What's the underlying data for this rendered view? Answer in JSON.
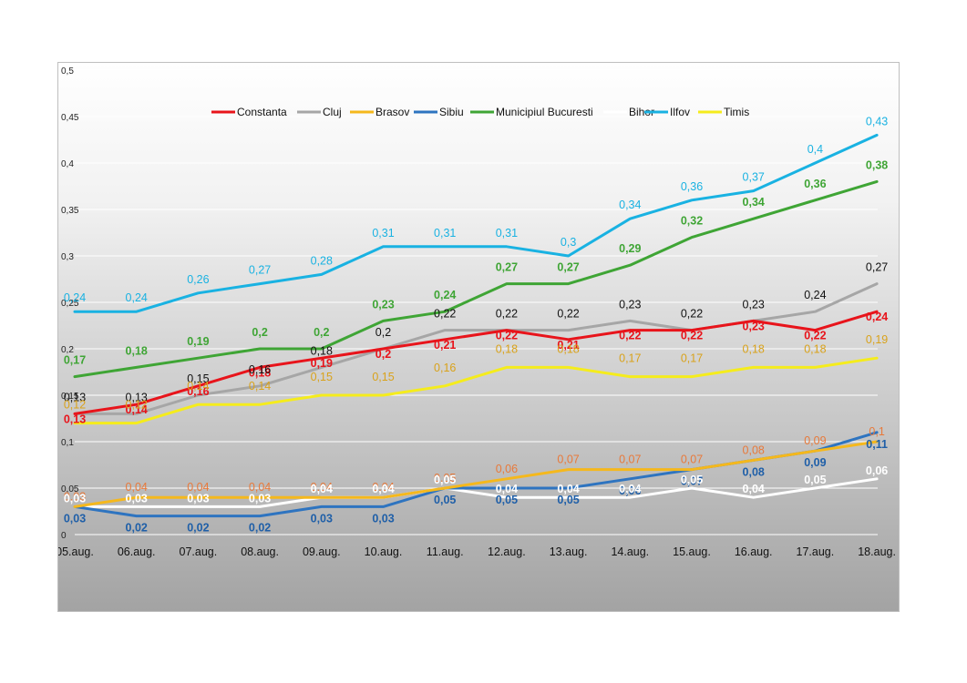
{
  "chart_data": {
    "type": "line",
    "categories": [
      "05.aug.",
      "06.aug.",
      "07.aug.",
      "08.aug.",
      "09.aug.",
      "10.aug.",
      "11.aug.",
      "12.aug.",
      "13.aug.",
      "14.aug.",
      "15.aug.",
      "16.aug.",
      "17.aug.",
      "18.aug."
    ],
    "ylim": [
      0,
      0.5
    ],
    "yticks": [
      "0",
      "0,05",
      "0,1",
      "0,15",
      "0,2",
      "0,25",
      "0,3",
      "0,35",
      "0,4",
      "0,45",
      "0,5"
    ],
    "grid": true,
    "legend_position": "top",
    "series": [
      {
        "name": "Constanta",
        "color": "#e8141b",
        "bold_labels": true,
        "values": [
          0.13,
          0.14,
          0.16,
          0.18,
          0.19,
          0.2,
          0.21,
          0.22,
          0.21,
          0.22,
          0.22,
          0.23,
          0.22,
          0.24
        ],
        "labels": [
          "0,13",
          "0,14",
          "0,16",
          "0,18",
          "0,19",
          "0,2",
          "0,21",
          "0,22",
          "0,21",
          "0,22",
          "0,22",
          "0,23",
          "0,22",
          "0,24"
        ]
      },
      {
        "name": "Cluj",
        "color": "#a6a6a6",
        "label_color": "#111111",
        "bold_labels": false,
        "values": [
          0.13,
          0.13,
          0.15,
          0.16,
          0.18,
          0.2,
          0.22,
          0.22,
          0.22,
          0.23,
          0.22,
          0.23,
          0.24,
          0.27
        ],
        "labels": [
          "0,13",
          "0,13",
          "0,15",
          "0,16",
          "0,18",
          "0,2",
          "0,22",
          "0,22",
          "0,22",
          "0,23",
          "0,22",
          "0,23",
          "0,24",
          "0,27"
        ]
      },
      {
        "name": "Brasov",
        "color": "#f5b81c",
        "label_color": "#e8793a",
        "bold_labels": false,
        "values": [
          0.03,
          0.04,
          0.04,
          0.04,
          0.04,
          0.04,
          0.05,
          0.06,
          0.07,
          0.07,
          0.07,
          0.08,
          0.09,
          0.1
        ],
        "labels": [
          "0,03",
          "0,04",
          "0,04",
          "0,04",
          "0,04",
          "0,04",
          "0,05",
          "0,06",
          "0,07",
          "0,07",
          "0,07",
          "0,08",
          "0,09",
          "0,1"
        ]
      },
      {
        "name": "Sibiu",
        "color": "#2e74c0",
        "label_color": "#1f5fa8",
        "bold_labels": true,
        "values": [
          0.03,
          0.02,
          0.02,
          0.02,
          0.03,
          0.03,
          0.05,
          0.05,
          0.05,
          0.06,
          0.07,
          0.08,
          0.09,
          0.11
        ],
        "labels": [
          "0,03",
          "0,02",
          "0,02",
          "0,02",
          "0,03",
          "0,03",
          "0,05",
          "0,05",
          "0,05",
          "0,06",
          "0,07",
          "0,08",
          "0,09",
          "0,11"
        ]
      },
      {
        "name": "Municipiul Bucuresti",
        "color": "#3fa535",
        "bold_labels": true,
        "values": [
          0.17,
          0.18,
          0.19,
          0.2,
          0.2,
          0.23,
          0.24,
          0.27,
          0.27,
          0.29,
          0.32,
          0.34,
          0.36,
          0.38
        ],
        "labels": [
          "0,17",
          "0,18",
          "0,19",
          "0,2",
          "0,2",
          "0,23",
          "0,24",
          "0,27",
          "0,27",
          "0,29",
          "0,32",
          "0,34",
          "0,36",
          "0,38"
        ]
      },
      {
        "name": "Bihor",
        "color": "#ffffff",
        "bold_labels": true,
        "values": [
          0.03,
          0.03,
          0.03,
          0.03,
          0.04,
          0.04,
          0.05,
          0.04,
          0.04,
          0.04,
          0.05,
          0.04,
          0.05,
          0.06
        ],
        "labels": [
          "0,03",
          "0,03",
          "0,03",
          "0,03",
          "0,04",
          "0,04",
          "0,05",
          "0,04",
          "0,04",
          "0,04",
          "0,05",
          "0,04",
          "0,05",
          "0,06"
        ]
      },
      {
        "name": "Ilfov",
        "color": "#19b2e2",
        "bold_labels": false,
        "values": [
          0.24,
          0.24,
          0.26,
          0.27,
          0.28,
          0.31,
          0.31,
          0.31,
          0.3,
          0.34,
          0.36,
          0.37,
          0.4,
          0.43
        ],
        "labels": [
          "0,24",
          "0,24",
          "0,26",
          "0,27",
          "0,28",
          "0,31",
          "0,31",
          "0,31",
          "0,3",
          "0,34",
          "0,36",
          "0,37",
          "0,4",
          "0,43"
        ]
      },
      {
        "name": "Timis",
        "color": "#f5ec1c",
        "label_color": "#d9a21a",
        "bold_labels": false,
        "values": [
          0.12,
          0.12,
          0.14,
          0.14,
          0.15,
          0.15,
          0.16,
          0.18,
          0.18,
          0.17,
          0.17,
          0.18,
          0.18,
          0.19
        ],
        "labels": [
          "0,12",
          "0,12",
          "0,14",
          "0,14",
          "0,15",
          "0,15",
          "0,16",
          "0,18",
          "0,18",
          "0,17",
          "0,17",
          "0,18",
          "0,18",
          "0,19"
        ]
      }
    ]
  },
  "colors": {
    "background_top": "#ffffff",
    "background_bottom": "#a6a6a6",
    "gridline": "#ffffff",
    "frame": "#bfbfbf"
  }
}
